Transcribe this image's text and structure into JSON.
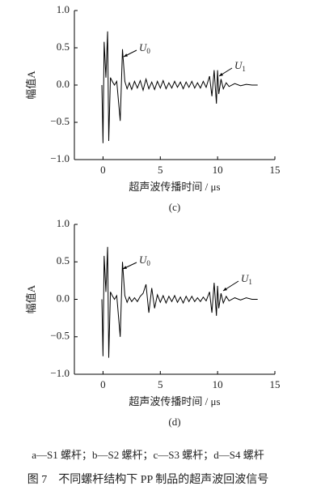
{
  "chart_data": [
    {
      "type": "line",
      "ylabel": "幅值A",
      "xlabel": "超声波传播时间 / μs",
      "panel": "(c)",
      "color": "#000000",
      "xlim": [
        -2.5,
        15
      ],
      "xticks": [
        0,
        5,
        10,
        15
      ],
      "ylim": [
        -1,
        1
      ],
      "yticks": [
        {
          "value": 1,
          "label": "1.0"
        },
        0.5,
        {
          "value": 0,
          "label": "0.0"
        },
        {
          "value": -0.5,
          "label": "−0.5"
        },
        {
          "value": -1,
          "label": "−1.0"
        }
      ],
      "annotations": [
        {
          "label": "U",
          "sub": "0"
        },
        {
          "label": "U",
          "sub": "1"
        }
      ],
      "x": [
        -0.1,
        0,
        0.1,
        0.25,
        0.4,
        0.5,
        0.65,
        0.8,
        1.0,
        1.2,
        1.5,
        1.7,
        1.9,
        2.1,
        2.3,
        2.5,
        2.75,
        3,
        3.25,
        3.5,
        3.75,
        4,
        4.25,
        4.5,
        4.75,
        5,
        5.25,
        5.5,
        5.75,
        6,
        6.25,
        6.5,
        6.75,
        7,
        7.25,
        7.5,
        7.75,
        8,
        8.25,
        8.5,
        8.75,
        9,
        9.3,
        9.5,
        9.7,
        9.9,
        10,
        10.1,
        10.3,
        10.5,
        10.75,
        11,
        11.5,
        12,
        12.5,
        13,
        13.5
      ],
      "values": [
        0,
        -0.78,
        0.58,
        0.1,
        0.72,
        -0.75,
        0.1,
        0.05,
        0,
        0.05,
        -0.48,
        0.48,
        0.05,
        -0.05,
        0.03,
        -0.06,
        0.05,
        -0.04,
        0.06,
        -0.07,
        0.08,
        -0.05,
        0.04,
        -0.06,
        0.05,
        -0.04,
        0.06,
        -0.05,
        0.03,
        -0.04,
        0.05,
        -0.03,
        0.04,
        -0.05,
        0.04,
        -0.03,
        0.05,
        -0.04,
        0.03,
        -0.04,
        0.05,
        -0.03,
        0.12,
        -0.15,
        0.2,
        -0.25,
        0.2,
        -0.12,
        0.08,
        -0.05,
        0.03,
        -0.02,
        0.02,
        -0.01,
        0.01,
        0,
        0
      ]
    },
    {
      "type": "line",
      "ylabel": "幅值A",
      "xlabel": "超声波传播时间 / μs",
      "panel": "(d)",
      "color": "#000000",
      "xlim": [
        -2.5,
        15
      ],
      "xticks": [
        0,
        5,
        10,
        15
      ],
      "ylim": [
        -1,
        1
      ],
      "yticks": [
        {
          "value": 1,
          "label": "1.0"
        },
        0.5,
        {
          "value": 0,
          "label": "0.0"
        },
        {
          "value": -0.5,
          "label": "−0.5"
        },
        {
          "value": -1,
          "label": "−1.0"
        }
      ],
      "annotations": [
        {
          "label": "U",
          "sub": "0"
        },
        {
          "label": "U",
          "sub": "1"
        }
      ],
      "x": [
        -0.1,
        0,
        0.1,
        0.25,
        0.4,
        0.5,
        0.65,
        0.8,
        1.0,
        1.2,
        1.5,
        1.7,
        1.9,
        2.1,
        2.3,
        2.5,
        2.75,
        3,
        3.25,
        3.5,
        3.75,
        4,
        4.25,
        4.5,
        4.75,
        5,
        5.25,
        5.5,
        5.75,
        6,
        6.25,
        6.5,
        6.75,
        7,
        7.25,
        7.5,
        7.75,
        8,
        8.25,
        8.5,
        8.75,
        9,
        9.3,
        9.5,
        9.7,
        9.9,
        10,
        10.1,
        10.3,
        10.5,
        10.75,
        11,
        11.5,
        12,
        12.5,
        13,
        13.5
      ],
      "values": [
        0,
        -0.76,
        0.58,
        0.1,
        0.7,
        -0.78,
        0.1,
        0.05,
        0,
        0.05,
        -0.5,
        0.5,
        0.05,
        -0.04,
        0.03,
        -0.03,
        0.02,
        -0.03,
        0.04,
        0.08,
        0.2,
        -0.18,
        0.15,
        -0.12,
        0.06,
        -0.04,
        0.05,
        -0.05,
        0.04,
        -0.03,
        0.05,
        -0.04,
        0.03,
        -0.05,
        0.04,
        -0.03,
        0.04,
        -0.03,
        0.02,
        -0.03,
        0.03,
        -0.02,
        0.1,
        -0.18,
        0.22,
        -0.22,
        0.18,
        -0.12,
        0.08,
        -0.05,
        0.04,
        -0.02,
        0.02,
        -0.01,
        0.02,
        0,
        0
      ]
    }
  ],
  "note": "a—S1 螺杆；b—S2 螺杆；c—S3 螺杆；d—S4 螺杆",
  "caption": "图 7　不同螺杆结构下 PP 制品的超声波回波信号"
}
